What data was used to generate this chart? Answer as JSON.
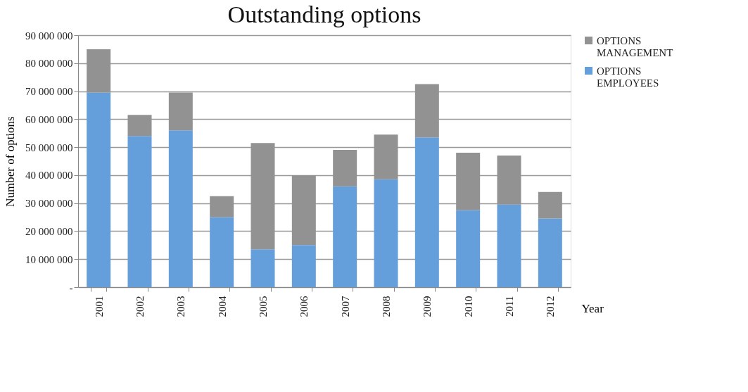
{
  "chart_data": {
    "type": "bar",
    "title": "Outstanding options",
    "xlabel": "Year",
    "ylabel": "Number of options",
    "categories": [
      "2001",
      "2002",
      "2003",
      "2004",
      "2005",
      "2006",
      "2007",
      "2008",
      "2009",
      "2010",
      "2011",
      "2012"
    ],
    "stacked": true,
    "series": [
      {
        "name": "OPTIONS EMPLOYEES",
        "color": "#659fdb",
        "values": [
          69500000,
          54000000,
          56000000,
          25000000,
          13500000,
          15000000,
          36000000,
          38500000,
          53500000,
          27500000,
          29500000,
          24500000
        ]
      },
      {
        "name": "OPTIONS MANAGEMENT",
        "color": "#929292",
        "values": [
          15500000,
          7500000,
          13500000,
          7500000,
          38000000,
          25000000,
          13000000,
          16000000,
          19000000,
          20500000,
          17500000,
          9500000
        ]
      }
    ],
    "ylim": [
      0,
      90000000
    ],
    "yticks": [
      {
        "value": 0,
        "label": "-"
      },
      {
        "value": 10000000,
        "label": "10 000 000"
      },
      {
        "value": 20000000,
        "label": "20 000 000"
      },
      {
        "value": 30000000,
        "label": "30 000 000"
      },
      {
        "value": 40000000,
        "label": "40 000 000"
      },
      {
        "value": 50000000,
        "label": "50 000 000"
      },
      {
        "value": 60000000,
        "label": "60 000 000"
      },
      {
        "value": 70000000,
        "label": "70 000 000"
      },
      {
        "value": 80000000,
        "label": "80 000 000"
      },
      {
        "value": 90000000,
        "label": "90 000 000"
      }
    ],
    "grid": "y",
    "legend": "right"
  }
}
